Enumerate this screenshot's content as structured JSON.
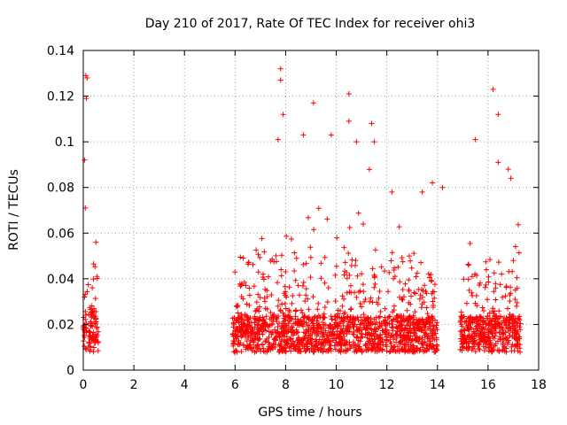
{
  "chart_data": {
    "type": "scatter",
    "title": "Day 210 of 2017, Rate Of TEC Index for receiver ohi3",
    "xlabel": "GPS time / hours",
    "ylabel": "ROTI / TECUs",
    "xlim": [
      0,
      18
    ],
    "ylim": [
      0,
      0.14
    ],
    "x_ticks": [
      "0",
      "2",
      "4",
      "6",
      "8",
      "10",
      "12",
      "14",
      "16",
      "18"
    ],
    "y_ticks": [
      "0",
      "0.02",
      "0.04",
      "0.06",
      "0.08",
      "0.1",
      "0.12",
      "0.14"
    ],
    "grid": true,
    "marker": "plus",
    "colors": {
      "points": "#ff0000"
    },
    "data_segments": [
      {
        "x_start": 0.0,
        "x_end": 0.6,
        "baseline": 0.016,
        "spread": 0.009
      },
      {
        "x_start": 5.9,
        "x_end": 14.0,
        "baseline": 0.015,
        "spread": 0.008
      },
      {
        "x_start": 14.9,
        "x_end": 17.3,
        "baseline": 0.015,
        "spread": 0.008
      }
    ],
    "notable_points": [
      {
        "x": 0.1,
        "y": 0.129
      },
      {
        "x": 0.15,
        "y": 0.128
      },
      {
        "x": 0.12,
        "y": 0.119
      },
      {
        "x": 0.05,
        "y": 0.092
      },
      {
        "x": 0.08,
        "y": 0.071
      },
      {
        "x": 0.5,
        "y": 0.056
      },
      {
        "x": 7.8,
        "y": 0.132
      },
      {
        "x": 7.8,
        "y": 0.127
      },
      {
        "x": 7.9,
        "y": 0.112
      },
      {
        "x": 7.7,
        "y": 0.101
      },
      {
        "x": 8.7,
        "y": 0.103
      },
      {
        "x": 9.1,
        "y": 0.117
      },
      {
        "x": 9.8,
        "y": 0.103
      },
      {
        "x": 10.5,
        "y": 0.121
      },
      {
        "x": 10.5,
        "y": 0.109
      },
      {
        "x": 10.8,
        "y": 0.1
      },
      {
        "x": 11.4,
        "y": 0.108
      },
      {
        "x": 11.5,
        "y": 0.1
      },
      {
        "x": 12.2,
        "y": 0.078
      },
      {
        "x": 13.4,
        "y": 0.078
      },
      {
        "x": 13.8,
        "y": 0.082
      },
      {
        "x": 14.2,
        "y": 0.08
      },
      {
        "x": 15.5,
        "y": 0.101
      },
      {
        "x": 16.2,
        "y": 0.123
      },
      {
        "x": 16.4,
        "y": 0.112
      },
      {
        "x": 16.4,
        "y": 0.091
      },
      {
        "x": 16.8,
        "y": 0.088
      },
      {
        "x": 16.9,
        "y": 0.084
      },
      {
        "x": 17.0,
        "y": 0.048
      }
    ]
  }
}
